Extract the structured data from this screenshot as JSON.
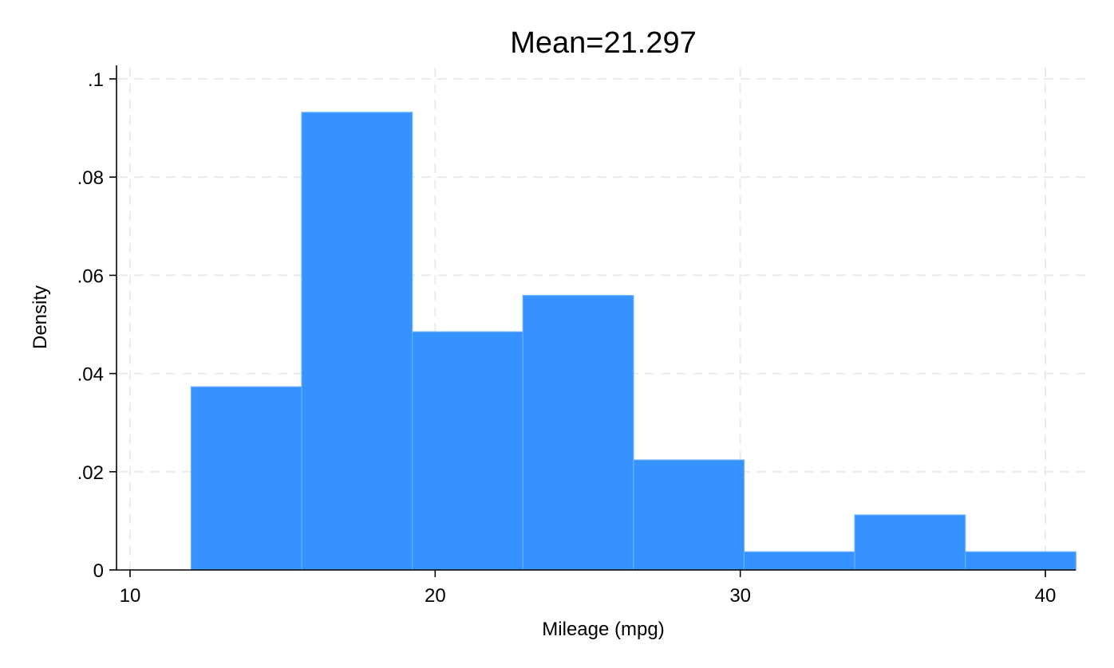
{
  "chart_data": {
    "type": "bar",
    "title": "Mean=21.297",
    "xlabel": "Mileage (mpg)",
    "ylabel": "Density",
    "xlim": [
      10,
      41
    ],
    "ylim": [
      0,
      0.1
    ],
    "xticks": [
      10,
      20,
      30,
      40
    ],
    "xtick_labels": [
      "10",
      "20",
      "30",
      "40"
    ],
    "yticks": [
      0,
      0.02,
      0.04,
      0.06,
      0.08,
      0.1
    ],
    "ytick_labels": [
      "0",
      ".02",
      ".04",
      ".06",
      ".08",
      ".1"
    ],
    "grid": true,
    "bins": [
      {
        "x0": 12.0,
        "x1": 15.625,
        "density": 0.0373
      },
      {
        "x0": 15.625,
        "x1": 19.25,
        "density": 0.0932
      },
      {
        "x0": 19.25,
        "x1": 22.875,
        "density": 0.0485
      },
      {
        "x0": 22.875,
        "x1": 26.5,
        "density": 0.0559
      },
      {
        "x0": 26.5,
        "x1": 30.125,
        "density": 0.0224
      },
      {
        "x0": 30.125,
        "x1": 33.75,
        "density": 0.0037
      },
      {
        "x0": 33.75,
        "x1": 37.375,
        "density": 0.0112
      },
      {
        "x0": 37.375,
        "x1": 41.0,
        "density": 0.0037
      }
    ],
    "colors": {
      "bar_fill": "#3592ff",
      "bar_edge": "#6aafff",
      "grid": "#e9ecef",
      "axis": "#000000"
    }
  }
}
